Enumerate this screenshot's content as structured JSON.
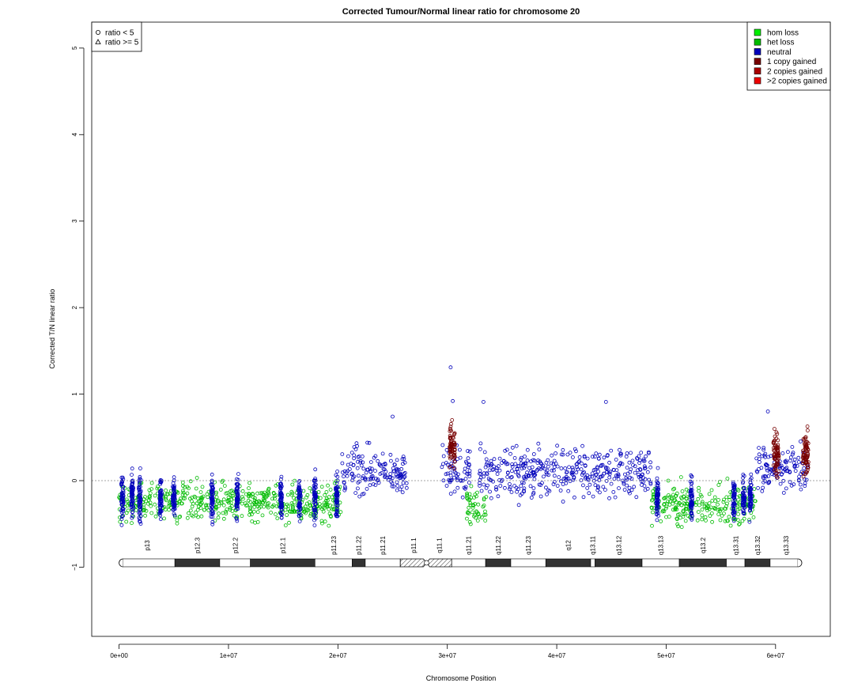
{
  "chart_data": {
    "type": "scatter",
    "title": "Corrected Tumour/Normal linear ratio for chromosome  20",
    "xlabel": "Chromosome Position",
    "ylabel": "Corrected T/N linear ratio",
    "xlim": [
      -2500000,
      65000000
    ],
    "ylim": [
      -1.8,
      5.3
    ],
    "x_ticks": [
      {
        "value": 0,
        "label": "0e+00"
      },
      {
        "value": 10000000,
        "label": "1e+07"
      },
      {
        "value": 20000000,
        "label": "2e+07"
      },
      {
        "value": 30000000,
        "label": "3e+07"
      },
      {
        "value": 40000000,
        "label": "4e+07"
      },
      {
        "value": 50000000,
        "label": "5e+07"
      },
      {
        "value": 60000000,
        "label": "6e+07"
      }
    ],
    "y_ticks": [
      {
        "value": -1,
        "label": "−1"
      },
      {
        "value": 0,
        "label": "0"
      },
      {
        "value": 1,
        "label": "1"
      },
      {
        "value": 2,
        "label": "2"
      },
      {
        "value": 3,
        "label": "3"
      },
      {
        "value": 4,
        "label": "4"
      },
      {
        "value": 5,
        "label": "5"
      }
    ],
    "reference_line": 0,
    "shape_legend": {
      "placement": "top-left",
      "items": [
        {
          "symbol": "circle",
          "label": "ratio < 5"
        },
        {
          "symbol": "triangle",
          "label": "ratio >= 5"
        }
      ]
    },
    "legend": {
      "placement": "top-right",
      "items": [
        {
          "label": "hom loss",
          "color": "#00ee00"
        },
        {
          "label": "het loss",
          "color": "#00bb00"
        },
        {
          "label": "neutral",
          "color": "#0000bb"
        },
        {
          "label": "1 copy gained",
          "color": "#770000"
        },
        {
          "label": "2 copies gained",
          "color": "#aa0000"
        },
        {
          "label": ">2 copies gained",
          "color": "#ee0000"
        }
      ]
    },
    "segments": [
      {
        "start": 0,
        "end": 20300000,
        "state": "het loss",
        "mean": -0.25,
        "spread": 0.22
      },
      {
        "start": 20300000,
        "end": 26300000,
        "state": "neutral",
        "mean": 0.1,
        "spread": 0.28
      },
      {
        "start": 29500000,
        "end": 32100000,
        "state": "neutral",
        "mean": 0.1,
        "spread": 0.26
      },
      {
        "start": 31700000,
        "end": 33600000,
        "state": "het loss",
        "mean": -0.3,
        "spread": 0.22
      },
      {
        "start": 32900000,
        "end": 48600000,
        "state": "neutral",
        "mean": 0.1,
        "spread": 0.3
      },
      {
        "start": 48600000,
        "end": 58200000,
        "state": "het loss",
        "mean": -0.27,
        "spread": 0.22
      },
      {
        "start": 58200000,
        "end": 63000000,
        "state": "neutral",
        "mean": 0.12,
        "spread": 0.28
      }
    ],
    "gained_regions": [
      {
        "start": 30200000,
        "end": 30700000,
        "state": "1 copy gained",
        "mean": 0.4,
        "spread": 0.25
      },
      {
        "start": 59800000,
        "end": 60300000,
        "state": "1 copy gained",
        "mean": 0.3,
        "spread": 0.25
      },
      {
        "start": 62500000,
        "end": 63000000,
        "state": "1 copy gained",
        "mean": 0.3,
        "spread": 0.25
      }
    ],
    "neutral_stripes": [
      300000,
      1200000,
      1900000,
      3800000,
      5000000,
      8500000,
      10800000,
      14800000,
      16500000,
      17900000,
      19900000,
      49200000,
      52300000,
      56200000,
      57100000,
      57700000
    ],
    "outliers": [
      {
        "x": 30300000,
        "y": 1.31
      },
      {
        "x": 30500000,
        "y": 0.92
      },
      {
        "x": 33300000,
        "y": 0.91
      },
      {
        "x": 44500000,
        "y": 0.91
      },
      {
        "x": 25000000,
        "y": 0.74
      },
      {
        "x": 59300000,
        "y": 0.8
      }
    ],
    "ideogram": {
      "y": -0.95,
      "bands": [
        {
          "name": "p13",
          "start": 0,
          "end": 5100000,
          "stain": "gneg"
        },
        {
          "name": "p12.3",
          "start": 5100000,
          "end": 9200000,
          "stain": "gpos"
        },
        {
          "name": "p12.2",
          "start": 9200000,
          "end": 12000000,
          "stain": "gneg"
        },
        {
          "name": "p12.1",
          "start": 12000000,
          "end": 17900000,
          "stain": "gpos"
        },
        {
          "name": "p11.23",
          "start": 17900000,
          "end": 21300000,
          "stain": "gneg"
        },
        {
          "name": "p11.22",
          "start": 21300000,
          "end": 22500000,
          "stain": "gpos"
        },
        {
          "name": "p11.21",
          "start": 22500000,
          "end": 25700000,
          "stain": "gneg"
        },
        {
          "name": "p11.1",
          "start": 25700000,
          "end": 28100000,
          "stain": "acen"
        },
        {
          "name": "q11.1",
          "start": 28100000,
          "end": 30400000,
          "stain": "acen"
        },
        {
          "name": "q11.21",
          "start": 30400000,
          "end": 33500000,
          "stain": "gneg"
        },
        {
          "name": "q11.22",
          "start": 33500000,
          "end": 35800000,
          "stain": "gpos"
        },
        {
          "name": "q11.23",
          "start": 35800000,
          "end": 39000000,
          "stain": "gneg"
        },
        {
          "name": "q12",
          "start": 39000000,
          "end": 43100000,
          "stain": "gpos"
        },
        {
          "name": "q13.11",
          "start": 43100000,
          "end": 43500000,
          "stain": "gneg"
        },
        {
          "name": "q13.12",
          "start": 43500000,
          "end": 47800000,
          "stain": "gpos"
        },
        {
          "name": "q13.13",
          "start": 47800000,
          "end": 51200000,
          "stain": "gneg"
        },
        {
          "name": "q13.2",
          "start": 51200000,
          "end": 55500000,
          "stain": "gpos"
        },
        {
          "name": "q13.31",
          "start": 55500000,
          "end": 57200000,
          "stain": "gneg"
        },
        {
          "name": "q13.32",
          "start": 57200000,
          "end": 59500000,
          "stain": "gpos"
        },
        {
          "name": "q13.33",
          "start": 59500000,
          "end": 62400000,
          "stain": "gneg"
        }
      ]
    },
    "grid": false
  }
}
